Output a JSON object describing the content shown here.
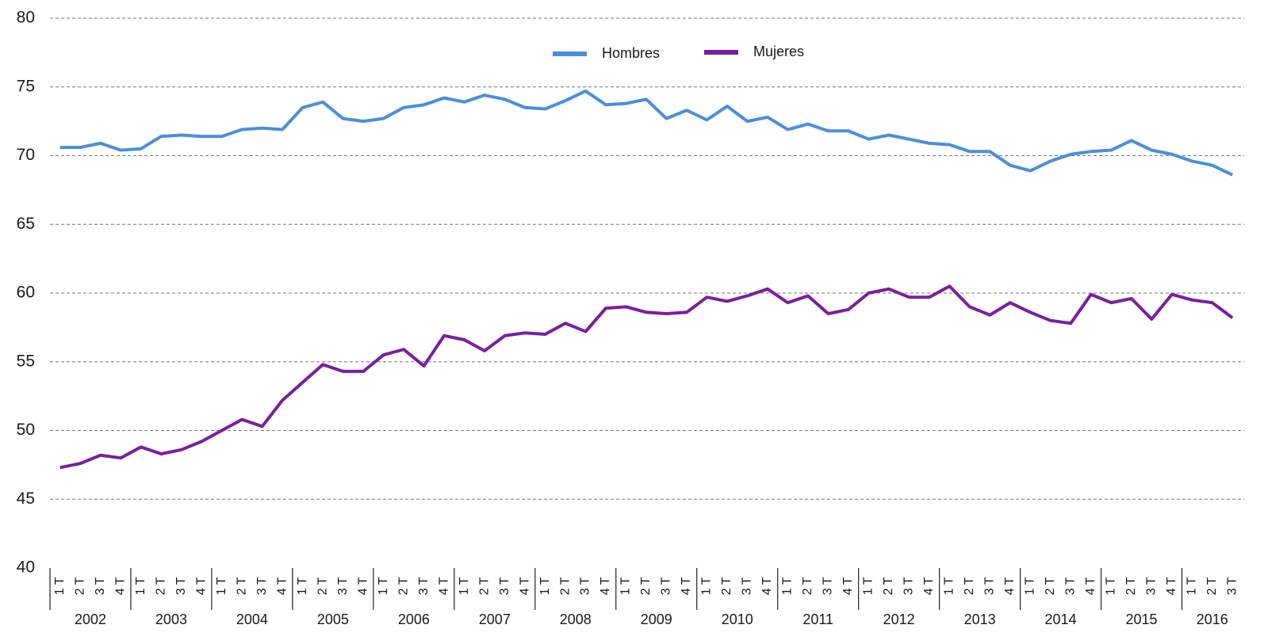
{
  "chart_data": {
    "type": "line",
    "categories": [
      "1 T",
      "2 T",
      "3 T",
      "4 T",
      "1 T",
      "2 T",
      "3 T",
      "4 T",
      "1 T",
      "2 T",
      "3 T",
      "4 T",
      "1 T",
      "2 T",
      "3 T",
      "4 T",
      "1 T",
      "2 T",
      "3 T",
      "4 T",
      "1 T",
      "2 T",
      "3 T",
      "4 T",
      "1 T",
      "2 T",
      "3 T",
      "4 T",
      "1 T",
      "2 T",
      "3 T",
      "4 T",
      "1 T",
      "2 T",
      "3 T",
      "4 T",
      "1 T",
      "2 T",
      "3 T",
      "4 T",
      "1 T",
      "2 T",
      "3 T",
      "4 T",
      "1 T",
      "2 T",
      "3 T",
      "4 T",
      "1 T",
      "2 T",
      "3 T",
      "4 T",
      "1 T",
      "2 T",
      "3 T",
      "4 T",
      "1 T",
      "2 T",
      "3 T"
    ],
    "category_groups": [
      "2002",
      "2003",
      "2004",
      "2005",
      "2006",
      "2007",
      "2008",
      "2009",
      "2010",
      "2011",
      "2012",
      "2013",
      "2014",
      "2015",
      "2016"
    ],
    "series": [
      {
        "name": "Hombres",
        "color": "#4a8fdc",
        "values": [
          70.6,
          70.6,
          70.9,
          70.4,
          70.5,
          71.4,
          71.5,
          71.4,
          71.4,
          71.9,
          72.0,
          71.9,
          73.5,
          73.9,
          72.7,
          72.5,
          72.7,
          73.5,
          73.7,
          74.2,
          73.9,
          74.4,
          74.1,
          73.5,
          73.4,
          74.0,
          74.7,
          73.7,
          73.8,
          74.1,
          72.7,
          73.3,
          72.6,
          73.6,
          72.5,
          72.8,
          71.9,
          72.3,
          71.8,
          71.8,
          71.2,
          71.5,
          71.2,
          70.9,
          70.8,
          70.3,
          70.3,
          69.3,
          68.9,
          69.6,
          70.1,
          70.3,
          70.4,
          71.1,
          70.4,
          70.1,
          69.6,
          69.3,
          68.6
        ]
      },
      {
        "name": "Mujeres",
        "color": "#7a1ea1",
        "values": [
          47.3,
          47.6,
          48.2,
          48.0,
          48.8,
          48.3,
          48.6,
          49.2,
          50.0,
          50.8,
          50.3,
          52.2,
          53.5,
          54.8,
          54.3,
          54.3,
          55.5,
          55.9,
          54.7,
          56.9,
          56.6,
          55.8,
          56.9,
          57.1,
          57.0,
          57.8,
          57.2,
          58.9,
          59.0,
          58.6,
          58.5,
          58.6,
          59.7,
          59.4,
          59.8,
          60.3,
          59.3,
          59.8,
          58.5,
          58.8,
          60.0,
          60.3,
          59.7,
          59.7,
          60.5,
          59.0,
          58.4,
          59.3,
          58.6,
          58.0,
          57.8,
          59.9,
          59.3,
          59.6,
          58.1,
          59.9,
          59.5,
          59.3,
          58.2
        ]
      }
    ],
    "ylim": [
      40,
      80
    ],
    "yticks": [
      40,
      45,
      50,
      55,
      60,
      65,
      70,
      75,
      80
    ],
    "grid": true,
    "legend": "top"
  }
}
